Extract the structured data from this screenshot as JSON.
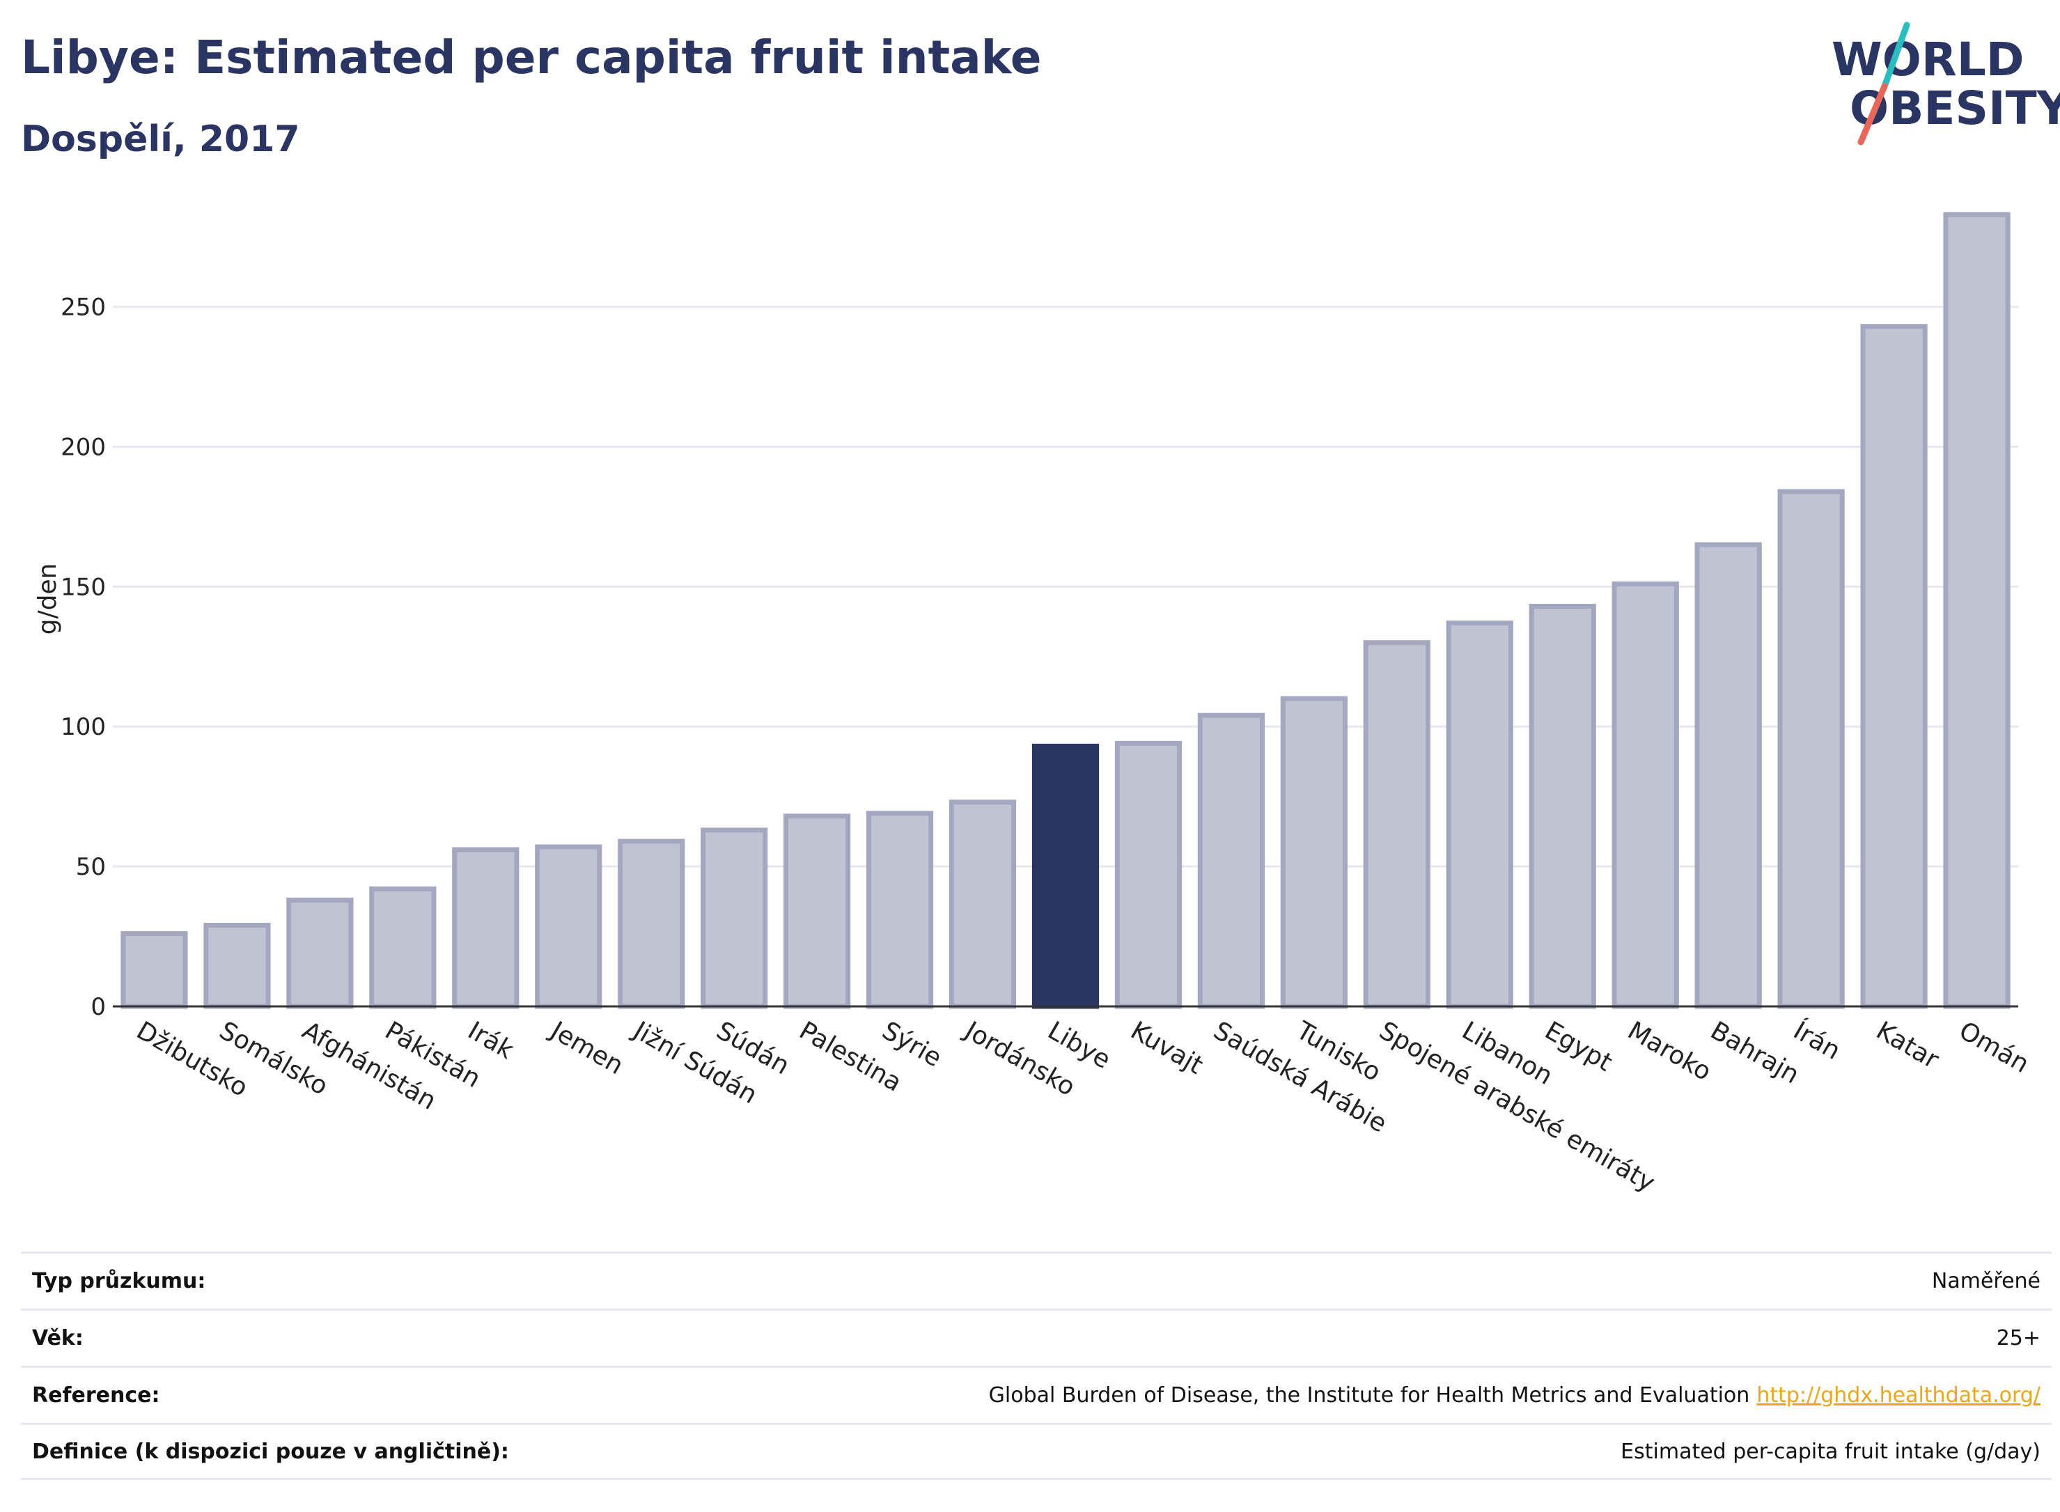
{
  "header": {
    "title": "Libye: Estimated per capita fruit intake",
    "subtitle": "Dospělí, 2017"
  },
  "logo": {
    "line1": "WORLD",
    "line2": "OBESITY",
    "colors": {
      "text": "#2a3563",
      "slash_top": "#2bbcc0",
      "slash_bottom": "#e8675a"
    }
  },
  "chart_data": {
    "type": "bar",
    "ylabel": "g/den",
    "ylim": [
      0,
      285
    ],
    "yticks": [
      0,
      50,
      100,
      150,
      200,
      250
    ],
    "grid": true,
    "highlight": "Libye",
    "colors": {
      "bar": "#c0c4d2",
      "bar_border": "#a3a8c0",
      "highlight": "#2a3563"
    },
    "categories": [
      "Džibutsko",
      "Somálsko",
      "Afghánistán",
      "Pákistán",
      "Irák",
      "Jemen",
      "Jižní Súdán",
      "Súdán",
      "Palestina",
      "Sýrie",
      "Jordánsko",
      "Libye",
      "Kuvajt",
      "Saúdská Arábie",
      "Tunisko",
      "Spojené arabské emiráty",
      "Libanon",
      "Egypt",
      "Maroko",
      "Bahrajn",
      "Írán",
      "Katar",
      "Omán"
    ],
    "values": [
      26,
      29,
      38,
      42,
      56,
      57,
      59,
      63,
      68,
      69,
      73,
      93,
      94,
      104,
      110,
      130,
      137,
      143,
      151,
      165,
      184,
      243,
      283
    ]
  },
  "meta": {
    "rows": [
      {
        "label": "Typ průzkumu:",
        "value": "Naměřené",
        "link": ""
      },
      {
        "label": "Věk:",
        "value": "25+",
        "link": ""
      },
      {
        "label": "Reference:",
        "value": "Global Burden of Disease, the Institute for Health Metrics and Evaluation",
        "link": "http://ghdx.healthdata.org/"
      },
      {
        "label": "Definice (k dispozici pouze v angličtině):",
        "value": "Estimated per-capita fruit intake (g/day)",
        "link": ""
      }
    ]
  }
}
